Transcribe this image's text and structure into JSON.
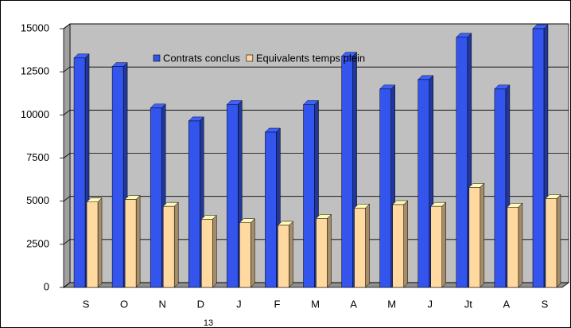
{
  "chart_data": {
    "type": "bar3d",
    "categories": [
      "S",
      "O",
      "N",
      "D",
      "J",
      "F",
      "M",
      "A",
      "M",
      "J",
      "Jt",
      "A",
      "S"
    ],
    "annotation": "13",
    "series": [
      {
        "name": "Contrats conclus",
        "color": "#3355ee",
        "values": [
          13300,
          12800,
          10400,
          9650,
          10600,
          9000,
          10600,
          13400,
          11500,
          12050,
          14500,
          11500,
          15000
        ]
      },
      {
        "name": "Equivalents temps plein",
        "color": "#ffd9a0",
        "values": [
          4950,
          5100,
          4700,
          3950,
          3750,
          3600,
          4000,
          4600,
          4800,
          4700,
          5800,
          4650,
          5150
        ]
      }
    ],
    "ylim": [
      0,
      15000
    ],
    "yticks": [
      0,
      2500,
      5000,
      7500,
      10000,
      12500,
      15000
    ],
    "grid": true,
    "legend": "top"
  }
}
